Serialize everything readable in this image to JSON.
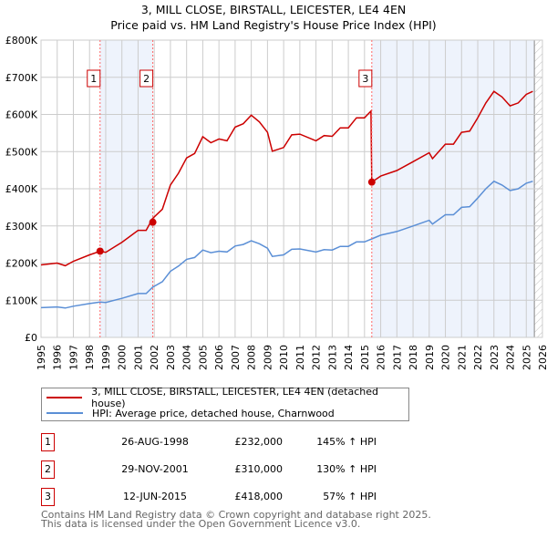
{
  "title_line1": "3, MILL CLOSE, BIRSTALL, LEICESTER, LE4 4EN",
  "title_line2": "Price paid vs. HM Land Registry's House Price Index (HPI)",
  "chart_data": {
    "type": "line",
    "title": "3, MILL CLOSE, BIRSTALL, LEICESTER, LE4 4EN — Price paid vs. HM Land Registry's House Price Index (HPI)",
    "xlim": [
      1995,
      2026
    ],
    "ylim": [
      0,
      800000
    ],
    "grid": true,
    "x_ticks": [
      "1995",
      "1996",
      "1997",
      "1998",
      "1999",
      "2000",
      "2001",
      "2002",
      "2003",
      "2004",
      "2005",
      "2006",
      "2007",
      "2008",
      "2009",
      "2010",
      "2011",
      "2012",
      "2013",
      "2014",
      "2015",
      "2016",
      "2017",
      "2018",
      "2019",
      "2020",
      "2021",
      "2022",
      "2023",
      "2024",
      "2025",
      "2026"
    ],
    "y_ticks": [
      {
        "v": 0,
        "label": "£0"
      },
      {
        "v": 100000,
        "label": "£100K"
      },
      {
        "v": 200000,
        "label": "£200K"
      },
      {
        "v": 300000,
        "label": "£300K"
      },
      {
        "v": 400000,
        "label": "£400K"
      },
      {
        "v": 500000,
        "label": "£500K"
      },
      {
        "v": 600000,
        "label": "£600K"
      },
      {
        "v": 700000,
        "label": "£700K"
      },
      {
        "v": 800000,
        "label": "£800K"
      }
    ],
    "colors": {
      "property": "#cc0000",
      "hpi": "#5b8fd6",
      "shade": "#eef3fc",
      "marker_line": "#ff6666"
    },
    "shaded_ranges": [
      [
        1998.65,
        2001.91
      ],
      [
        2015.45,
        2025.5
      ]
    ],
    "hatched_from": 2025.5,
    "series": [
      {
        "name": "property",
        "x": [
          1995,
          1996,
          1996.5,
          1997,
          1998,
          1998.65,
          1999,
          2000,
          2001,
          2001.5,
          2001.9,
          2002.5,
          2003,
          2003.5,
          2004,
          2004.5,
          2005,
          2005.5,
          2006,
          2006.5,
          2007,
          2007.5,
          2008,
          2008.5,
          2009,
          2009.3,
          2010,
          2010.5,
          2011,
          2012,
          2012.5,
          2013,
          2013.5,
          2014,
          2014.5,
          2015,
          2015.4,
          2015.45,
          2016,
          2017,
          2018,
          2019,
          2019.2,
          2020,
          2020.5,
          2021,
          2021.5,
          2022,
          2022.5,
          2023,
          2023.5,
          2024,
          2024.5,
          2025,
          2025.4
        ],
        "y": [
          195000,
          200000,
          193000,
          205000,
          222000,
          232000,
          229000,
          256000,
          288000,
          288000,
          320000,
          345000,
          410000,
          442000,
          483000,
          495000,
          540000,
          524000,
          534000,
          529000,
          566000,
          575000,
          598000,
          580000,
          552000,
          501000,
          511000,
          545000,
          547000,
          529000,
          543000,
          541000,
          564000,
          564000,
          591000,
          591000,
          609000,
          418000,
          434000,
          449000,
          473000,
          497000,
          481000,
          520000,
          520000,
          552000,
          555000,
          591000,
          631000,
          662000,
          647000,
          623000,
          631000,
          654000,
          662000
        ]
      },
      {
        "name": "hpi",
        "x": [
          1995,
          1996,
          1996.5,
          1997,
          1998,
          1998.65,
          1999,
          2000,
          2001,
          2001.5,
          2001.9,
          2002.5,
          2003,
          2003.5,
          2004,
          2004.5,
          2005,
          2005.5,
          2006,
          2006.5,
          2007,
          2007.5,
          2008,
          2008.5,
          2009,
          2009.3,
          2010,
          2010.5,
          2011,
          2012,
          2012.5,
          2013,
          2013.5,
          2014,
          2014.5,
          2015,
          2015.45,
          2016,
          2017,
          2018,
          2019,
          2019.2,
          2020,
          2020.5,
          2021,
          2021.5,
          2022,
          2022.5,
          2023,
          2023.5,
          2024,
          2024.5,
          2025,
          2025.4
        ],
        "y": [
          80000,
          82000,
          79000,
          84000,
          91000,
          95000,
          94000,
          105000,
          118000,
          118000,
          135000,
          150000,
          178000,
          192000,
          210000,
          215000,
          235000,
          228000,
          232000,
          230000,
          246000,
          250000,
          260000,
          252000,
          240000,
          218000,
          222000,
          237000,
          238000,
          230000,
          236000,
          235000,
          245000,
          245000,
          257000,
          257000,
          265000,
          275000,
          285000,
          300000,
          315000,
          305000,
          330000,
          330000,
          350000,
          352000,
          375000,
          400000,
          420000,
          410000,
          395000,
          400000,
          415000,
          420000
        ]
      }
    ],
    "sales": [
      {
        "id": "1",
        "x": 1998.65,
        "y": 232000
      },
      {
        "id": "2",
        "x": 2001.91,
        "y": 310000
      },
      {
        "id": "3",
        "x": 2015.45,
        "y": 418000
      }
    ]
  },
  "legend": {
    "property": "3, MILL CLOSE, BIRSTALL, LEICESTER, LE4 4EN (detached house)",
    "hpi": "HPI: Average price, detached house, Charnwood"
  },
  "transactions": [
    {
      "id": "1",
      "date": "26-AUG-1998",
      "price": "£232,000",
      "hpi": "145% ↑ HPI"
    },
    {
      "id": "2",
      "date": "29-NOV-2001",
      "price": "£310,000",
      "hpi": "130% ↑ HPI"
    },
    {
      "id": "3",
      "date": "12-JUN-2015",
      "price": "£418,000",
      "hpi": "57% ↑ HPI"
    }
  ],
  "footer": {
    "line1": "Contains HM Land Registry data © Crown copyright and database right 2025.",
    "line2": "This data is licensed under the Open Government Licence v3.0."
  }
}
